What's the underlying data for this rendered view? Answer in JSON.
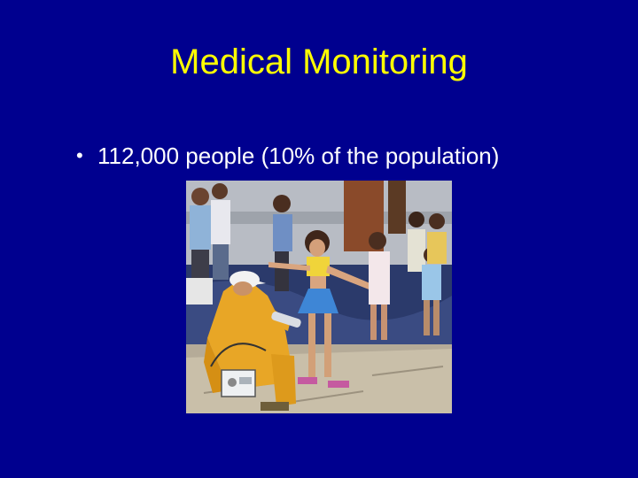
{
  "slide": {
    "title": "Medical Monitoring",
    "bullets": [
      {
        "symbol": "•",
        "text": "112,000 people (10% of the population)"
      }
    ],
    "photo": {
      "subject": "photo-monitoring-children"
    }
  },
  "colors": {
    "background": "#00008f",
    "title": "#ffff00",
    "bullet_text": "#ffffff"
  }
}
